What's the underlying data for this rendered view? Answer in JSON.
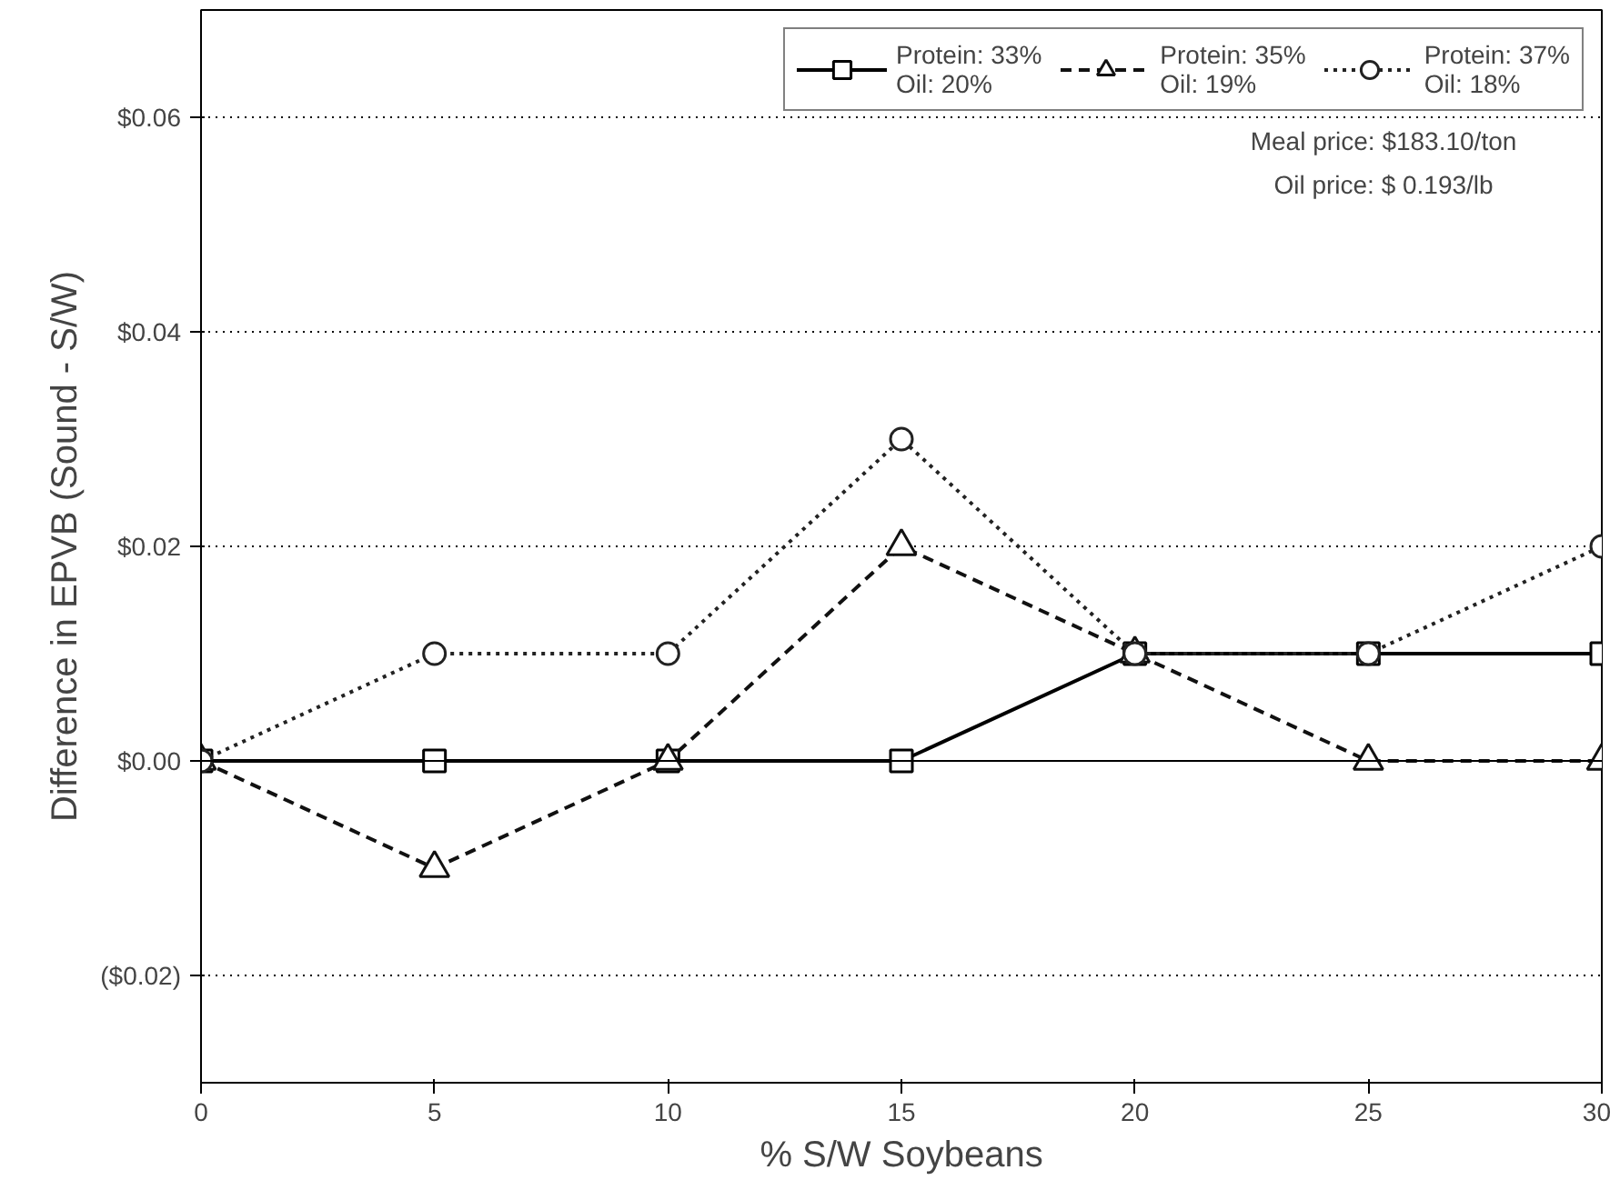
{
  "chart_data": {
    "type": "line",
    "xlabel": "% S/W Soybeans",
    "ylabel": "Difference in EPVB (Sound - S/W)",
    "x": [
      0,
      5,
      10,
      15,
      20,
      25,
      30
    ],
    "series": [
      {
        "name": "Protein: 33%\nOil: 20%",
        "color": "#000000",
        "values": [
          0,
          0,
          0,
          0,
          0.01,
          0.01,
          0.01
        ],
        "marker": "square",
        "line_style": "solid"
      },
      {
        "name": "Protein: 35%\nOil: 19%",
        "color": "#111111",
        "values": [
          0,
          -0.01,
          0,
          0.02,
          0.01,
          0,
          0
        ],
        "marker": "triangle",
        "line_style": "dashed"
      },
      {
        "name": "Protein: 37%\nOil: 18%",
        "color": "#222222",
        "values": [
          0,
          0.01,
          0.01,
          0.03,
          0.01,
          0.01,
          0.02
        ],
        "marker": "circle",
        "line_style": "dotted"
      }
    ],
    "xlim": [
      0,
      30
    ],
    "xticks": [
      0,
      5,
      10,
      15,
      20,
      25,
      30
    ],
    "ylim": [
      -0.03,
      0.07
    ],
    "yticks": [
      {
        "value": -0.02,
        "label": "($0.02)"
      },
      {
        "value": 0,
        "label": "$0.00"
      },
      {
        "value": 0.02,
        "label": "$0.02"
      },
      {
        "value": 0.04,
        "label": "$0.04"
      },
      {
        "value": 0.06,
        "label": "$0.06"
      }
    ],
    "grid": "y",
    "legend": "top right",
    "ref_lines": [
      {
        "axis": "y",
        "value": 0,
        "line_style": "solid",
        "color": "#000000"
      }
    ],
    "annotations": [
      "Meal price: $183.10/ton",
      "Oil price: $ 0.193/lb"
    ]
  }
}
